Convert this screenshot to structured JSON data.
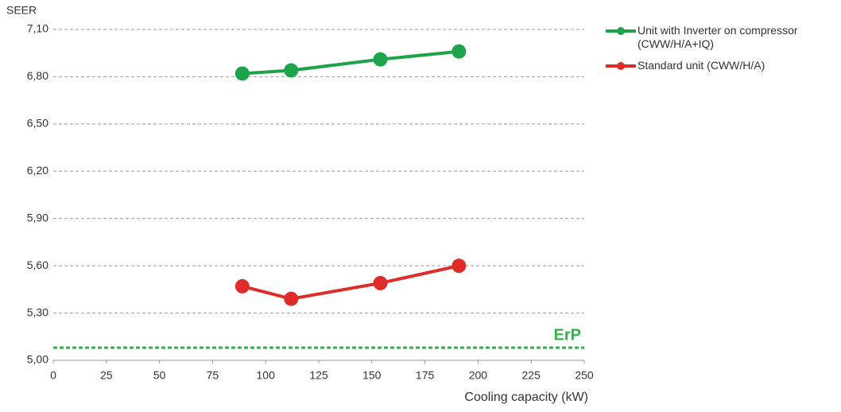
{
  "chart_data": {
    "type": "line",
    "y_label": "SEER",
    "x_label": "Cooling capacity (kW)",
    "series": [
      {
        "name": "Unit with Inverter on compressor (CWW/H/A+IQ)",
        "color": "#1fa34a",
        "x": [
          89,
          112,
          154,
          191
        ],
        "values": [
          6.82,
          6.84,
          6.91,
          6.96
        ]
      },
      {
        "name": "Standard unit (CWW/H/A)",
        "color": "#e02b2b",
        "x": [
          89,
          112,
          154,
          191
        ],
        "values": [
          5.47,
          5.39,
          5.49,
          5.6
        ]
      }
    ],
    "annotation": {
      "text": "ErP",
      "value": 5.08,
      "color": "#2db34a"
    },
    "xlim": [
      0,
      250
    ],
    "xticks": [
      0,
      25,
      50,
      75,
      100,
      125,
      150,
      175,
      200,
      225,
      250
    ],
    "ylim": [
      5.0,
      7.1
    ],
    "yticks": [
      {
        "value": 5.0,
        "label": "5,00"
      },
      {
        "value": 5.3,
        "label": "5,30"
      },
      {
        "value": 5.6,
        "label": "5,60"
      },
      {
        "value": 5.9,
        "label": "5,90"
      },
      {
        "value": 6.2,
        "label": "6,20"
      },
      {
        "value": 6.5,
        "label": "6,50"
      },
      {
        "value": 6.8,
        "label": "6,80"
      },
      {
        "value": 7.1,
        "label": "7,10"
      }
    ],
    "grid": true,
    "legend": "top-right"
  }
}
